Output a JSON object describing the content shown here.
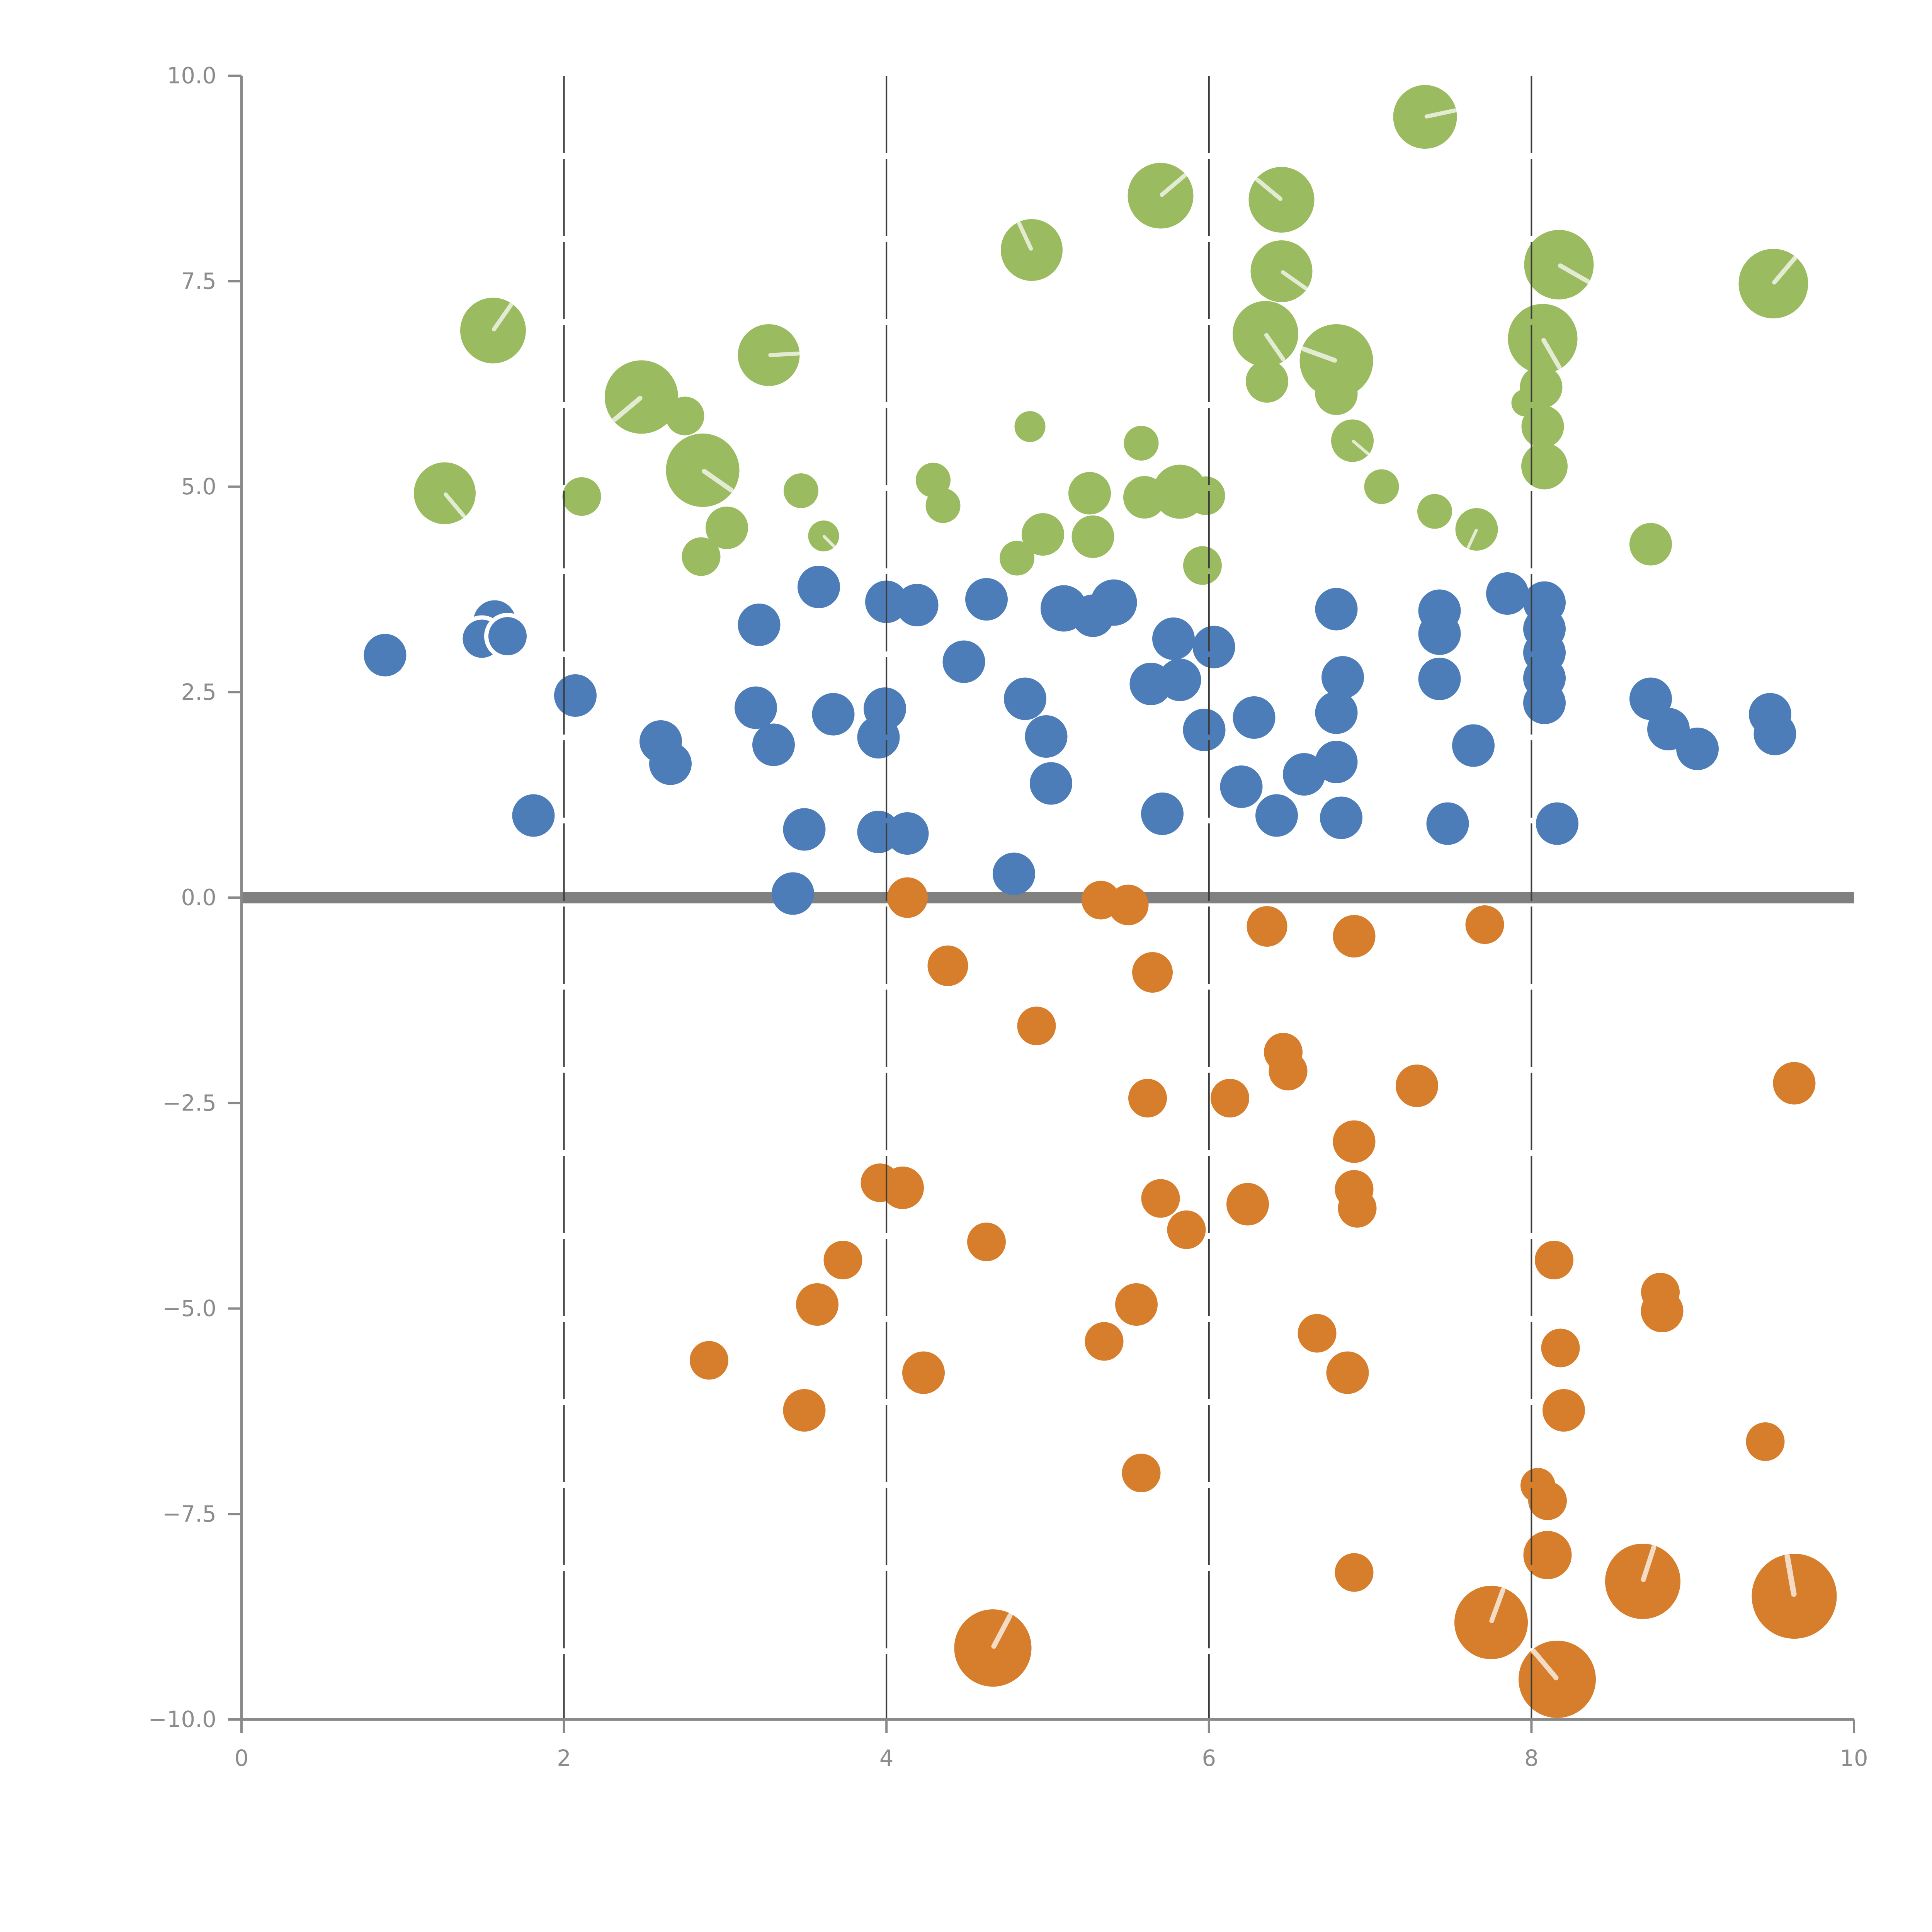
{
  "chart_data": {
    "type": "scatter",
    "title": "",
    "xlabel": "",
    "ylabel": "",
    "xlim": [
      0,
      10
    ],
    "ylim": [
      -10,
      10
    ],
    "x_ticks": {
      "values": [
        0,
        2,
        4,
        6,
        8,
        10
      ],
      "labels": [
        "0",
        "2",
        "4",
        "6",
        "8",
        "10"
      ]
    },
    "y_ticks": {
      "values": [
        10,
        7.5,
        5,
        2.5,
        0,
        -2.5,
        -5,
        -7.5,
        -10
      ],
      "labels": [
        "10.0",
        "7.5",
        "5.0",
        "2.5",
        "0.0",
        "−2.5",
        "−5.0",
        "−7.5",
        "−10.0"
      ]
    },
    "grid": {
      "vertical_values": [
        2,
        4,
        6,
        8
      ],
      "zero_line_y": 0
    },
    "legend": null,
    "series": [
      {
        "name": "green-bubbles",
        "color": "#9abb60",
        "points": [
          [
            7.34,
            9.5,
            16.5,
            12
          ],
          [
            5.7,
            8.54,
            17,
            40
          ],
          [
            6.45,
            8.49,
            17,
            140
          ],
          [
            4.9,
            7.88,
            16,
            115
          ],
          [
            8.17,
            7.7,
            18,
            -30
          ],
          [
            9.5,
            7.47,
            18,
            50
          ],
          [
            1.56,
            6.9,
            17,
            55
          ],
          [
            6.45,
            7.62,
            16,
            -35
          ],
          [
            6.35,
            6.86,
            17,
            -55
          ],
          [
            6.79,
            6.53,
            19,
            160
          ],
          [
            6.79,
            6.13,
            11,
            null
          ],
          [
            6.36,
            6.28,
            11,
            null
          ],
          [
            6.89,
            5.56,
            11,
            -40
          ],
          [
            3.27,
            6.6,
            16,
            3
          ],
          [
            2.48,
            6.09,
            19,
            -140
          ],
          [
            2.75,
            5.86,
            10,
            null
          ],
          [
            2.86,
            5.2,
            19,
            -35
          ],
          [
            8.07,
            6.8,
            18,
            -60
          ],
          [
            8.06,
            6.21,
            11,
            null
          ],
          [
            8.07,
            5.73,
            11,
            null
          ],
          [
            8.08,
            5.25,
            12,
            null
          ],
          [
            7.96,
            6.02,
            7,
            null
          ],
          [
            5.26,
            4.92,
            11,
            null
          ],
          [
            4.97,
            4.42,
            11,
            null
          ],
          [
            5.28,
            4.39,
            11,
            null
          ],
          [
            5.6,
            4.87,
            11,
            null
          ],
          [
            5.82,
            4.94,
            14,
            null
          ],
          [
            5.98,
            4.89,
            10,
            null
          ],
          [
            5.96,
            4.04,
            10,
            null
          ],
          [
            2.11,
            4.88,
            10,
            null
          ],
          [
            2.85,
            4.15,
            10,
            null
          ],
          [
            3.01,
            4.5,
            11,
            null
          ],
          [
            3.47,
            4.95,
            9,
            null
          ],
          [
            3.61,
            4.4,
            8,
            -45
          ],
          [
            8.74,
            4.3,
            11,
            null
          ],
          [
            7.66,
            4.48,
            11,
            -115
          ],
          [
            4.29,
            5.08,
            9,
            null
          ],
          [
            4.35,
            4.77,
            9,
            null
          ],
          [
            4.81,
            4.13,
            9,
            null
          ],
          [
            4.89,
            5.73,
            8,
            null
          ],
          [
            5.58,
            5.53,
            9,
            null
          ],
          [
            7.07,
            5.0,
            9,
            null
          ],
          [
            7.4,
            4.7,
            9,
            null
          ],
          [
            1.26,
            4.92,
            16,
            -50
          ]
        ]
      },
      {
        "name": "blue-dots",
        "color": "#4d7db8",
        "points": [
          [
            0.89,
            2.95,
            11,
            null
          ],
          [
            1.57,
            3.36,
            11,
            null
          ],
          [
            1.49,
            3.15,
            11,
            null,
            1
          ],
          [
            1.65,
            3.18,
            11,
            null,
            1
          ],
          [
            1.81,
            1.0,
            11,
            null
          ],
          [
            2.07,
            2.46,
            11,
            null
          ],
          [
            2.6,
            1.9,
            11,
            null
          ],
          [
            2.66,
            1.63,
            11,
            null
          ],
          [
            3.21,
            3.32,
            11,
            null
          ],
          [
            3.58,
            3.78,
            11,
            null
          ],
          [
            4.0,
            3.6,
            11,
            null
          ],
          [
            4.19,
            3.56,
            11,
            null
          ],
          [
            3.19,
            2.31,
            11,
            null
          ],
          [
            3.67,
            2.23,
            11,
            null
          ],
          [
            3.3,
            1.86,
            11,
            null
          ],
          [
            3.99,
            2.3,
            11,
            null
          ],
          [
            3.95,
            1.95,
            11,
            null
          ],
          [
            3.42,
            0.05,
            11,
            null
          ],
          [
            3.49,
            0.83,
            11,
            null
          ],
          [
            3.95,
            0.8,
            11,
            null
          ],
          [
            4.13,
            0.78,
            11,
            null
          ],
          [
            4.48,
            2.87,
            11,
            null
          ],
          [
            4.62,
            3.63,
            11,
            null
          ],
          [
            4.79,
            0.29,
            11,
            null
          ],
          [
            4.86,
            2.42,
            11,
            null
          ],
          [
            4.99,
            1.96,
            11,
            null
          ],
          [
            5.02,
            1.39,
            11,
            null
          ],
          [
            5.1,
            3.52,
            12,
            null
          ],
          [
            5.28,
            3.43,
            11,
            null
          ],
          [
            5.41,
            3.59,
            12,
            null
          ],
          [
            5.78,
            3.15,
            11,
            null
          ],
          [
            6.03,
            3.05,
            11,
            null
          ],
          [
            5.64,
            2.6,
            11,
            null
          ],
          [
            5.82,
            2.65,
            11,
            null
          ],
          [
            5.71,
            1.02,
            11,
            null
          ],
          [
            5.97,
            2.04,
            11,
            null
          ],
          [
            6.28,
            2.19,
            11,
            null
          ],
          [
            6.2,
            1.35,
            11,
            null
          ],
          [
            6.42,
            1.0,
            11,
            null
          ],
          [
            6.59,
            1.5,
            11,
            null
          ],
          [
            6.79,
            3.51,
            11,
            null
          ],
          [
            7.43,
            3.49,
            11,
            null
          ],
          [
            7.43,
            3.21,
            11,
            null
          ],
          [
            6.83,
            2.68,
            11,
            null
          ],
          [
            6.79,
            2.25,
            11,
            null
          ],
          [
            7.43,
            2.66,
            11,
            null
          ],
          [
            6.79,
            1.65,
            11,
            null
          ],
          [
            7.64,
            1.85,
            11,
            null
          ],
          [
            6.82,
            0.97,
            11,
            null
          ],
          [
            7.48,
            0.9,
            11,
            null
          ],
          [
            7.85,
            3.7,
            11,
            null
          ],
          [
            8.08,
            3.59,
            11,
            null
          ],
          [
            8.08,
            3.27,
            11,
            null
          ],
          [
            8.08,
            2.98,
            11,
            null
          ],
          [
            8.08,
            2.67,
            11,
            null
          ],
          [
            8.08,
            2.37,
            11,
            null
          ],
          [
            8.16,
            0.9,
            11,
            null
          ],
          [
            8.74,
            2.42,
            11,
            null
          ],
          [
            8.85,
            2.05,
            11,
            null
          ],
          [
            9.03,
            1.81,
            11,
            null
          ],
          [
            9.48,
            2.23,
            11,
            null
          ],
          [
            9.51,
            1.99,
            11,
            null
          ]
        ]
      },
      {
        "name": "orange-bubbles",
        "color": "#d67e2b",
        "points": [
          [
            4.13,
            0.0,
            10.5,
            null
          ],
          [
            5.33,
            -0.03,
            10,
            null
          ],
          [
            5.5,
            -0.09,
            10.5,
            null
          ],
          [
            6.36,
            -0.35,
            10.5,
            null
          ],
          [
            5.65,
            -0.91,
            10.5,
            null
          ],
          [
            4.38,
            -0.83,
            10.5,
            null
          ],
          [
            6.9,
            -0.47,
            11,
            null
          ],
          [
            7.71,
            -0.33,
            10,
            null
          ],
          [
            4.93,
            -1.56,
            10,
            null
          ],
          [
            6.46,
            -1.88,
            10,
            null
          ],
          [
            6.49,
            -2.11,
            10,
            null
          ],
          [
            7.29,
            -2.29,
            11,
            null
          ],
          [
            9.63,
            -2.26,
            11,
            null
          ],
          [
            5.62,
            -2.44,
            10,
            null
          ],
          [
            6.13,
            -2.44,
            10,
            null
          ],
          [
            6.9,
            -2.97,
            11,
            null
          ],
          [
            3.96,
            -3.47,
            10,
            null
          ],
          [
            4.1,
            -3.53,
            11,
            null
          ],
          [
            4.62,
            -4.19,
            10,
            null
          ],
          [
            5.7,
            -3.66,
            10,
            null
          ],
          [
            5.86,
            -4.04,
            10,
            null
          ],
          [
            6.24,
            -3.73,
            11,
            null
          ],
          [
            6.9,
            -3.55,
            10,
            null
          ],
          [
            6.92,
            -3.78,
            10,
            null
          ],
          [
            3.73,
            -4.41,
            10,
            null
          ],
          [
            3.57,
            -4.95,
            11,
            null
          ],
          [
            5.55,
            -4.95,
            11,
            null
          ],
          [
            5.35,
            -5.4,
            10,
            null
          ],
          [
            2.9,
            -5.63,
            10,
            null
          ],
          [
            4.23,
            -5.78,
            11,
            null
          ],
          [
            3.49,
            -6.24,
            11,
            null
          ],
          [
            6.67,
            -5.3,
            10,
            null
          ],
          [
            6.86,
            -5.78,
            11,
            null
          ],
          [
            8.14,
            -4.41,
            10,
            null
          ],
          [
            8.8,
            -4.8,
            10,
            null
          ],
          [
            8.81,
            -5.03,
            11,
            null
          ],
          [
            8.18,
            -5.48,
            10,
            null
          ],
          [
            8.2,
            -6.24,
            11,
            null
          ],
          [
            5.58,
            -7.0,
            10,
            null
          ],
          [
            9.45,
            -6.62,
            10,
            null
          ],
          [
            8.04,
            -7.15,
            9,
            null
          ],
          [
            8.1,
            -7.34,
            10,
            null
          ],
          [
            8.1,
            -8.0,
            12.5,
            null
          ],
          [
            6.9,
            -8.21,
            10,
            null
          ],
          [
            4.66,
            -9.13,
            20,
            62
          ],
          [
            7.75,
            -8.82,
            19,
            70
          ],
          [
            8.69,
            -8.32,
            19.5,
            72
          ],
          [
            9.63,
            -8.5,
            22,
            100
          ],
          [
            8.16,
            -9.51,
            20,
            130
          ]
        ]
      }
    ],
    "style": {
      "slash_color": "#ffffff",
      "slash_opacity": 0.72,
      "overlap_outline_color": "#ffffff",
      "grid_color": "#3c3c3c",
      "zero_line_color": "#808080",
      "axis_color": "#898989",
      "tick_label_color": "#8c8c8c"
    }
  },
  "layout_note": "single scatter axes, no title, no legend, left+bottom spines only"
}
